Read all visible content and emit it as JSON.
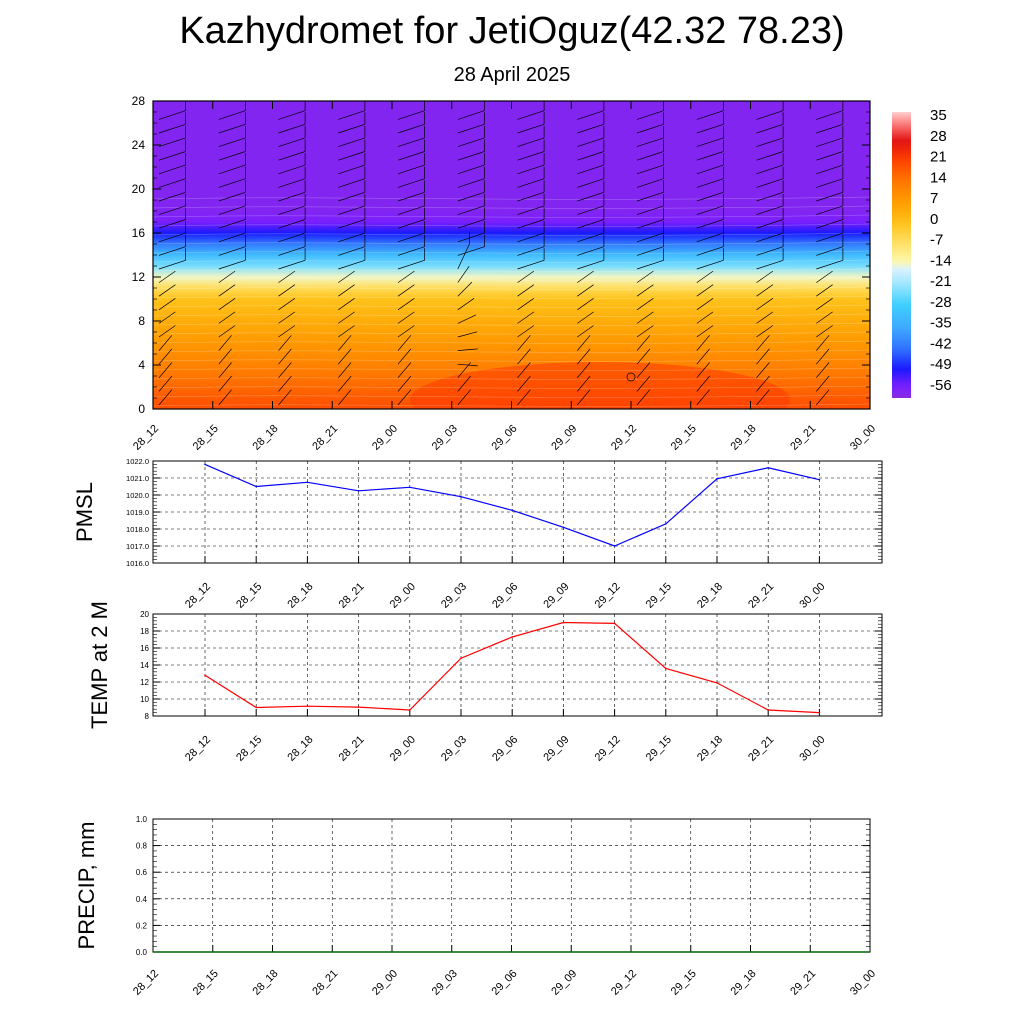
{
  "title": "Kazhydromet for JetiOguz(42.32 78.23)",
  "subtitle": "28 April 2025",
  "chart_data": [
    {
      "type": "heatmap",
      "y_ticks": [
        0,
        4,
        8,
        12,
        16,
        20,
        24,
        28
      ],
      "ylim": [
        0,
        28
      ],
      "x_tick_labels": [
        "28_12",
        "28_15",
        "28_18",
        "28_21",
        "29_00",
        "29_03",
        "29_06",
        "29_09",
        "29_12",
        "29_15",
        "29_18",
        "29_21",
        "30_00"
      ],
      "colorbar_labels": [
        "35",
        "28",
        "21",
        "14",
        "7",
        "0",
        "-7",
        "-14",
        "-21",
        "-28",
        "-35",
        "-42",
        "-49",
        "-56"
      ],
      "colorbar_range": [
        -60,
        38
      ],
      "values_note_rows": [
        {
          "y": 0,
          "value": 20
        },
        {
          "y": 2,
          "value": 16
        },
        {
          "y": 4,
          "value": 12
        },
        {
          "y": 6,
          "value": 8
        },
        {
          "y": 8,
          "value": 4
        },
        {
          "y": 10,
          "value": 0
        },
        {
          "y": 11,
          "value": -6
        },
        {
          "y": 12,
          "value": -14
        },
        {
          "y": 13,
          "value": -24
        },
        {
          "y": 14,
          "value": -32
        },
        {
          "y": 15,
          "value": -42
        },
        {
          "y": 16,
          "value": -50
        },
        {
          "y": 17,
          "value": -56
        },
        {
          "y": 18,
          "value": -58
        },
        {
          "y": 28,
          "value": -58
        }
      ]
    },
    {
      "type": "line",
      "ylabel": "PMSL",
      "categories": [
        "28_12",
        "28_15",
        "28_18",
        "28_21",
        "29_00",
        "29_03",
        "29_06",
        "29_09",
        "29_12",
        "29_15",
        "29_18",
        "29_21",
        "30_00"
      ],
      "values": [
        1021.8,
        1020.5,
        1020.75,
        1020.25,
        1020.45,
        1019.9,
        1019.1,
        1018.1,
        1017.0,
        1018.3,
        1020.95,
        1021.6,
        1020.9
      ],
      "ylim": [
        1016.0,
        1022.0
      ],
      "y_tick_labels": [
        "1016.0",
        "1017.0",
        "1018.0",
        "1019.0",
        "1020.0",
        "1021.0",
        "1022.0"
      ],
      "color": "#0000ff"
    },
    {
      "type": "line",
      "ylabel": "TEMP at 2 M",
      "categories": [
        "28_12",
        "28_15",
        "28_18",
        "28_21",
        "29_00",
        "29_03",
        "29_06",
        "29_09",
        "29_12",
        "29_15",
        "29_18",
        "29_21",
        "30_00"
      ],
      "values": [
        12.8,
        9.0,
        9.15,
        9.05,
        8.7,
        14.8,
        17.3,
        19.0,
        18.9,
        13.6,
        11.9,
        8.7,
        8.4
      ],
      "ylim": [
        8,
        20
      ],
      "y_tick_labels": [
        "8",
        "10",
        "12",
        "14",
        "16",
        "18",
        "20"
      ],
      "color": "#ff0000"
    },
    {
      "type": "line",
      "ylabel": "PRECIP, mm",
      "categories": [
        "28_12",
        "28_15",
        "28_18",
        "28_21",
        "29_00",
        "29_03",
        "29_06",
        "29_09",
        "29_12",
        "29_15",
        "29_18",
        "29_21",
        "30_00"
      ],
      "values": [
        0,
        0,
        0,
        0,
        0,
        0,
        0,
        0,
        0,
        0,
        0,
        0,
        0
      ],
      "ylim": [
        0,
        1.0
      ],
      "y_tick_labels": [
        "0.0",
        "0.2",
        "0.4",
        "0.6",
        "0.8",
        "1.0"
      ],
      "color": "#006400"
    }
  ]
}
